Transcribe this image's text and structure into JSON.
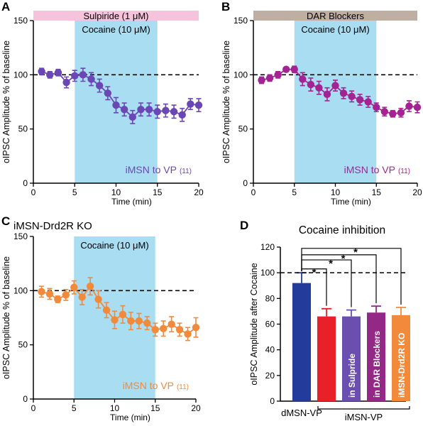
{
  "colors": {
    "purple": "#6B46B5",
    "magenta": "#A42392",
    "orange": "#F28A3C",
    "blue": "#233C9B",
    "red": "#E8202A",
    "purple_bar": "#6B4FB0",
    "magenta_bar": "#942886",
    "cocaine_shade": "#A9DDF2",
    "sulpiride_bar": "#F5C4DC",
    "dar_bar": "#BFAFA2"
  },
  "chart_data": [
    {
      "panel": "A",
      "type": "scatter",
      "treatment_label": "Sulpiride (1 μM)",
      "shade_label": "Cocaine (10 μM)",
      "shade_range": [
        5,
        15
      ],
      "legend": "iMSN to VP",
      "n_label": "(11)",
      "xlabel": "Time (min)",
      "ylabel": "oIPSC Amplitude % of baseline",
      "xlim": [
        0,
        20
      ],
      "ylim": [
        0,
        150
      ],
      "xticks": [
        "0",
        "5",
        "10",
        "15",
        "20"
      ],
      "yticks": [
        "0",
        "50",
        "100",
        "150"
      ],
      "baseline": 100,
      "x": [
        1,
        2,
        3,
        4,
        5,
        6,
        7,
        8,
        9,
        10,
        11,
        12,
        13,
        14,
        15,
        16,
        17,
        18,
        19,
        20
      ],
      "y": [
        103,
        100,
        102,
        93,
        99,
        100,
        96,
        90,
        83,
        72,
        68,
        61,
        68,
        68,
        66,
        67,
        66,
        63,
        73,
        72
      ],
      "err": [
        3,
        3,
        3,
        5,
        5,
        6,
        6,
        6,
        6,
        7,
        6,
        6,
        6,
        6,
        6,
        6,
        6,
        6,
        5,
        6
      ]
    },
    {
      "panel": "B",
      "type": "scatter",
      "treatment_label": "DAR Blockers",
      "shade_label": "Cocaine (10 μM)",
      "shade_range": [
        5,
        15
      ],
      "legend": "iMSN to VP",
      "n_label": "(11)",
      "xlabel": "Time (min)",
      "ylabel": "oIPSC Amplitude % of baseline",
      "xlim": [
        0,
        20
      ],
      "ylim": [
        0,
        150
      ],
      "xticks": [
        "0",
        "5",
        "10",
        "15",
        "20"
      ],
      "yticks": [
        "0",
        "50",
        "100",
        "150"
      ],
      "baseline": 100,
      "x": [
        1,
        2,
        3,
        4,
        5,
        6,
        7,
        8,
        9,
        10,
        11,
        12,
        13,
        14,
        15,
        16,
        17,
        18,
        19,
        20
      ],
      "y": [
        95,
        97,
        100,
        105,
        105,
        96,
        91,
        88,
        82,
        90,
        83,
        80,
        77,
        75,
        70,
        66,
        64,
        65,
        71,
        70
      ],
      "err": [
        3,
        3,
        3,
        2,
        3,
        6,
        6,
        6,
        6,
        5,
        5,
        5,
        5,
        5,
        4,
        4,
        3,
        4,
        5,
        5
      ]
    },
    {
      "panel": "C",
      "type": "scatter",
      "title": "iMSN-Drd2R KO",
      "shade_label": "Cocaine (10 μM)",
      "shade_range": [
        5,
        15
      ],
      "legend": "iMSN to VP",
      "n_label": "(11)",
      "xlabel": "Time (min)",
      "ylabel": "oIPSC Amplitude % of baseline",
      "xlim": [
        0,
        20
      ],
      "ylim": [
        0,
        150
      ],
      "xticks": [
        "0",
        "5",
        "10",
        "15",
        "20"
      ],
      "yticks": [
        "0",
        "50",
        "100",
        "150"
      ],
      "baseline": 100,
      "x": [
        1,
        2,
        3,
        4,
        5,
        6,
        7,
        8,
        9,
        10,
        11,
        12,
        13,
        14,
        15,
        16,
        17,
        18,
        19,
        20
      ],
      "y": [
        99,
        97,
        92,
        96,
        103,
        94,
        104,
        92,
        82,
        73,
        78,
        72,
        72,
        70,
        64,
        65,
        69,
        64,
        60,
        66
      ],
      "err": [
        5,
        5,
        3,
        5,
        6,
        7,
        8,
        8,
        7,
        8,
        8,
        8,
        7,
        6,
        6,
        7,
        7,
        6,
        6,
        9
      ]
    },
    {
      "panel": "D",
      "type": "bar",
      "title": "Cocaine inhibition",
      "ylabel": "oIPSC Amplitude after Cocaine",
      "ylim": [
        0,
        120
      ],
      "yticks": [
        "0",
        "20",
        "40",
        "60",
        "80",
        "100",
        "120"
      ],
      "baseline": 100,
      "bar_labels": [
        "",
        "",
        "in Sulpride",
        "in DAR Blockers",
        "iMSN-Drd2R KO"
      ],
      "values": [
        92,
        66,
        66,
        69,
        67
      ],
      "err": [
        8,
        6,
        5,
        5,
        6
      ],
      "group_labels": [
        "dMSN-VP",
        "iMSN-VP"
      ],
      "significance": [
        "*",
        "*",
        "*",
        "*"
      ]
    }
  ],
  "panels": {
    "A": "A",
    "B": "B",
    "C": "C",
    "D": "D"
  }
}
